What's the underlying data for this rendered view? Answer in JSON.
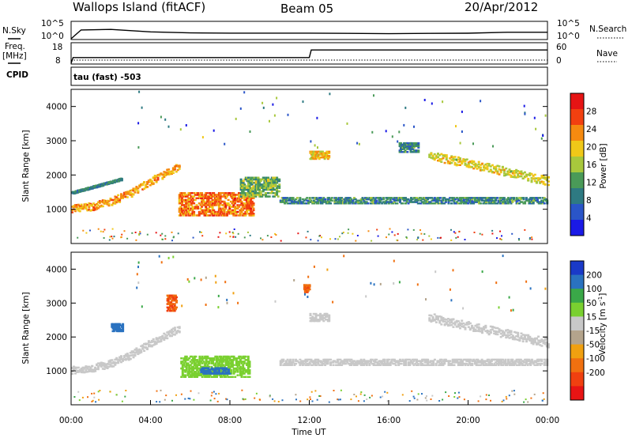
{
  "header": {
    "station": "Wallops Island (fitACF)",
    "beam": "Beam 05",
    "date": "20/Apr/2012"
  },
  "strips": {
    "nsky_label": "N.Sky",
    "nsky_tick_top": "10^5",
    "nsky_tick_bottom": "10^0",
    "nsearch_label": "N.Search",
    "nsearch_tick_top": "10^5",
    "nsearch_tick_bottom": "10^0",
    "freq_label": "Freq.",
    "freq_unit": "[MHz]",
    "freq_tick_top": "18",
    "freq_tick_bottom": "8",
    "nave_label": "Nave",
    "nave_tick_top": "60",
    "nave_tick_bottom": "0",
    "cpid_label": "CPID",
    "cpid_value": "tau (fast) -503"
  },
  "colors": {
    "power_scale": [
      "#1a1ae6",
      "#2a55c8",
      "#2e7a82",
      "#4a9a58",
      "#a8c83c",
      "#f0c818",
      "#f58a10",
      "#f24010",
      "#e61414"
    ],
    "velocity_scale": [
      "#1a3ac8",
      "#2a72c0",
      "#3aa848",
      "#7ad030",
      "#c8c8c8",
      "#b4a48c",
      "#f0a010",
      "#f07010",
      "#f04010",
      "#e81414"
    ],
    "ground_scatter": "#c8c8c8",
    "backscatter_green": "#5ac43a"
  },
  "chart_data": [
    {
      "type": "line",
      "name": "N.Sky / N.Search",
      "x_unit": "hour UT",
      "y_scale": "log",
      "ylim": [
        1,
        100000
      ],
      "x": [
        0,
        0.5,
        2,
        4,
        6,
        8,
        10,
        12,
        14,
        16,
        18,
        20,
        22,
        24
      ],
      "y": [
        1,
        600,
        900,
        150,
        70,
        60,
        60,
        60,
        50,
        40,
        50,
        55,
        110,
        110
      ]
    },
    {
      "type": "line",
      "name": "Freq. / Nave",
      "x_unit": "hour UT",
      "ylim": [
        8,
        18
      ],
      "x": [
        0,
        0.1,
        12,
        12.1,
        24
      ],
      "y": [
        8,
        11,
        11,
        15,
        15
      ]
    },
    {
      "type": "heatmap",
      "xlabel": "",
      "ylabel": "Slant Range [km]",
      "xlim": [
        0,
        24
      ],
      "ylim": [
        0,
        4500
      ],
      "yticks": [
        "1000",
        "2000",
        "3000",
        "4000"
      ],
      "colorbar_label": "Power [dB]",
      "colorbar_ticks": [
        "4",
        "8",
        "12",
        "16",
        "20",
        "24",
        "28"
      ],
      "colorbar_range": [
        0,
        32
      ],
      "features": [
        {
          "kind": "ramp",
          "t": [
            0,
            1,
            2,
            3,
            4,
            5,
            5.4
          ],
          "r": [
            1050,
            1100,
            1250,
            1500,
            1850,
            2150,
            2250
          ],
          "width_km": 220,
          "value": 22
        },
        {
          "kind": "ramp",
          "t": [
            0,
            2.5
          ],
          "r": [
            1500,
            1900
          ],
          "width_km": 60,
          "value": 10
        },
        {
          "kind": "blob",
          "t": [
            5.4,
            9.2
          ],
          "r": [
            850,
            1550
          ],
          "value": 24
        },
        {
          "kind": "blob",
          "t": [
            8.5,
            10.5
          ],
          "r": [
            1400,
            2000
          ],
          "value": 14
        },
        {
          "kind": "band",
          "t": [
            10.5,
            24
          ],
          "r": [
            1200,
            1400
          ],
          "value": 10
        },
        {
          "kind": "band",
          "t": [
            12,
            13
          ],
          "r": [
            2500,
            2750
          ],
          "value": 20
        },
        {
          "kind": "band",
          "t": [
            16.5,
            17.5
          ],
          "r": [
            2700,
            3000
          ],
          "value": 10
        },
        {
          "kind": "ramp",
          "t": [
            18,
            24
          ],
          "r": [
            2600,
            1850
          ],
          "width_km": 260,
          "value": 18
        }
      ]
    },
    {
      "type": "heatmap",
      "xlabel": "Time UT",
      "ylabel": "Slant Range [km]",
      "xlim": [
        0,
        24
      ],
      "ylim": [
        0,
        4500
      ],
      "xticks": [
        "00:00",
        "04:00",
        "08:00",
        "12:00",
        "16:00",
        "20:00",
        "00:00"
      ],
      "yticks": [
        "1000",
        "2000",
        "3000",
        "4000"
      ],
      "colorbar_label": "Velocity [m s",
      "colorbar_label_exp": "-1",
      "colorbar_label_end": "]",
      "colorbar_ticks": [
        "200",
        "100",
        "50",
        "15",
        "-15",
        "-50",
        "-100",
        "-200"
      ],
      "features": [
        {
          "kind": "ramp",
          "t": [
            0,
            1,
            2,
            3,
            4,
            5,
            5.4
          ],
          "r": [
            1050,
            1100,
            1250,
            1500,
            1850,
            2150,
            2250
          ],
          "width_km": 220,
          "value": 0
        },
        {
          "kind": "blob",
          "t": [
            5.5,
            9.0
          ],
          "r": [
            850,
            1500
          ],
          "value": 40
        },
        {
          "kind": "blob",
          "t": [
            6.5,
            8.0
          ],
          "r": [
            950,
            1150
          ],
          "value": 180
        },
        {
          "kind": "blob",
          "t": [
            4.8,
            5.3
          ],
          "r": [
            2800,
            3300
          ],
          "value": -200
        },
        {
          "kind": "blob",
          "t": [
            2.0,
            2.6
          ],
          "r": [
            2200,
            2450
          ],
          "value": 150
        },
        {
          "kind": "band",
          "t": [
            10.5,
            24
          ],
          "r": [
            1200,
            1400
          ],
          "value": 0
        },
        {
          "kind": "band",
          "t": [
            12,
            13
          ],
          "r": [
            2500,
            2750
          ],
          "value": 0
        },
        {
          "kind": "blob",
          "t": [
            11.7,
            12.0
          ],
          "r": [
            3350,
            3600
          ],
          "value": -200
        },
        {
          "kind": "ramp",
          "t": [
            18,
            24
          ],
          "r": [
            2600,
            1850
          ],
          "width_km": 260,
          "value": 0
        }
      ]
    }
  ]
}
